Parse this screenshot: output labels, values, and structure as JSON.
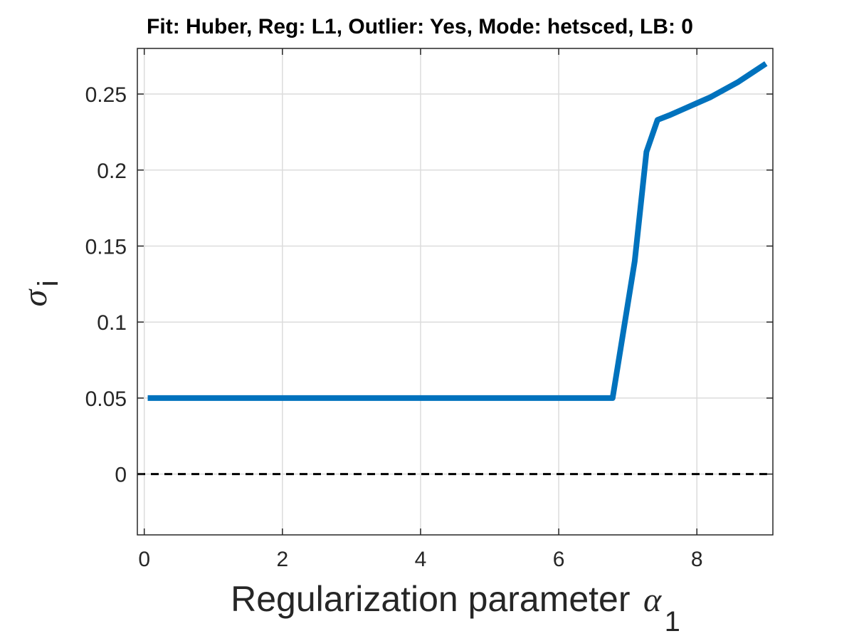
{
  "chart_data": {
    "type": "line",
    "title": "Fit: Huber, Reg: L1, Outlier: Yes, Mode: hetsced, LB: 0",
    "xlabel": {
      "text": "Regularization parameter",
      "symbol": "α",
      "subscript": "1"
    },
    "ylabel": {
      "symbol": "σ",
      "subscript": "i"
    },
    "xlim": [
      -0.1,
      9.1
    ],
    "ylim": [
      -0.04,
      0.28
    ],
    "xticks": [
      0,
      2,
      4,
      6,
      8
    ],
    "xtick_labels": [
      "0",
      "2",
      "4",
      "6",
      "8"
    ],
    "yticks": [
      0,
      0.05,
      0.1,
      0.15,
      0.2,
      0.25
    ],
    "ytick_labels": [
      "0",
      "0.05",
      "0.1",
      "0.15",
      "0.2",
      "0.25"
    ],
    "grid": true,
    "series": [
      {
        "color": "#0072BD",
        "style": "solid",
        "x": [
          0.05,
          1,
          2,
          3,
          4,
          5,
          6,
          6.5,
          6.78,
          7.1,
          7.27,
          7.43,
          7.6,
          7.8,
          8.0,
          8.2,
          8.4,
          8.6,
          8.8,
          9.0
        ],
        "y": [
          0.05,
          0.05,
          0.05,
          0.05,
          0.05,
          0.05,
          0.05,
          0.05,
          0.05,
          0.14,
          0.212,
          0.233,
          0.236,
          0.24,
          0.244,
          0.248,
          0.253,
          0.258,
          0.264,
          0.27
        ]
      }
    ],
    "reference_lines": [
      {
        "y": 0,
        "color": "#000000",
        "style": "dashed"
      }
    ]
  }
}
